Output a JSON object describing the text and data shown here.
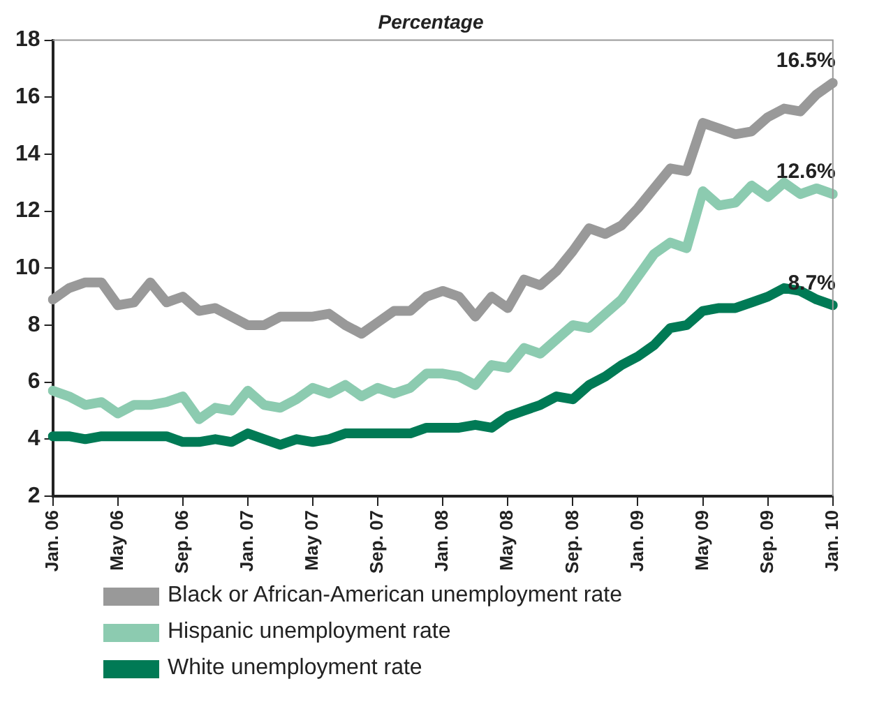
{
  "chart_data": {
    "type": "line",
    "title": "Percentage",
    "categories": [
      "Jan. 06",
      null,
      null,
      null,
      "May 06",
      null,
      null,
      null,
      "Sep. 06",
      null,
      null,
      null,
      "Jan. 07",
      null,
      null,
      null,
      "May 07",
      null,
      null,
      null,
      "Sep. 07",
      null,
      null,
      null,
      "Jan. 08",
      null,
      null,
      null,
      "May 08",
      null,
      null,
      null,
      "Sep. 08",
      null,
      null,
      null,
      "Jan. 09",
      null,
      null,
      null,
      "May 09",
      null,
      null,
      null,
      "Sep. 09",
      null,
      null,
      null,
      "Jan. 10"
    ],
    "series": [
      {
        "name": "Black or African-American unemployment rate",
        "color": "#999999",
        "values": [
          8.9,
          9.3,
          9.5,
          9.5,
          8.7,
          8.8,
          9.5,
          8.8,
          9.0,
          8.5,
          8.6,
          8.3,
          8.0,
          8.0,
          8.3,
          8.3,
          8.3,
          8.4,
          8.0,
          7.7,
          8.1,
          8.5,
          8.5,
          9.0,
          9.2,
          9.0,
          8.3,
          9.0,
          8.6,
          9.6,
          9.4,
          9.9,
          10.6,
          11.4,
          11.2,
          11.5,
          12.1,
          12.8,
          13.5,
          13.4,
          15.1,
          14.9,
          14.7,
          14.8,
          15.3,
          15.6,
          15.5,
          16.1,
          16.5
        ]
      },
      {
        "name": "Hispanic unemployment rate",
        "color": "#8ccbb0",
        "values": [
          5.7,
          5.5,
          5.2,
          5.3,
          4.9,
          5.2,
          5.2,
          5.3,
          5.5,
          4.7,
          5.1,
          5.0,
          5.7,
          5.2,
          5.1,
          5.4,
          5.8,
          5.6,
          5.9,
          5.5,
          5.8,
          5.6,
          5.8,
          6.3,
          6.3,
          6.2,
          5.9,
          6.6,
          6.5,
          7.2,
          7.0,
          7.5,
          8.0,
          7.9,
          8.4,
          8.9,
          9.7,
          10.5,
          10.9,
          10.7,
          12.7,
          12.2,
          12.3,
          12.9,
          12.5,
          13.0,
          12.6,
          12.8,
          12.6
        ]
      },
      {
        "name": "White unemployment rate",
        "color": "#007a55",
        "values": [
          4.1,
          4.1,
          4.0,
          4.1,
          4.1,
          4.1,
          4.1,
          4.1,
          3.9,
          3.9,
          4.0,
          3.9,
          4.2,
          4.0,
          3.8,
          4.0,
          3.9,
          4.0,
          4.2,
          4.2,
          4.2,
          4.2,
          4.2,
          4.4,
          4.4,
          4.4,
          4.5,
          4.4,
          4.8,
          5.0,
          5.2,
          5.5,
          5.4,
          5.9,
          6.2,
          6.6,
          6.9,
          7.3,
          7.9,
          8.0,
          8.5,
          8.6,
          8.6,
          8.8,
          9.0,
          9.3,
          9.2,
          8.9,
          8.7
        ]
      }
    ],
    "annotations": [
      {
        "text": "16.5%",
        "x": "Jan. 10",
        "y": 16.5
      },
      {
        "text": "12.6%",
        "x": "Jan. 10",
        "y": 12.6
      },
      {
        "text": "8.7%",
        "x": "Jan. 10",
        "y": 8.7
      }
    ],
    "ylim": [
      2,
      18
    ],
    "yticks": [
      2,
      4,
      6,
      8,
      10,
      12,
      14,
      16,
      18
    ],
    "grid": false,
    "legend": "bottom",
    "marker": "none",
    "line_style": "solid"
  }
}
